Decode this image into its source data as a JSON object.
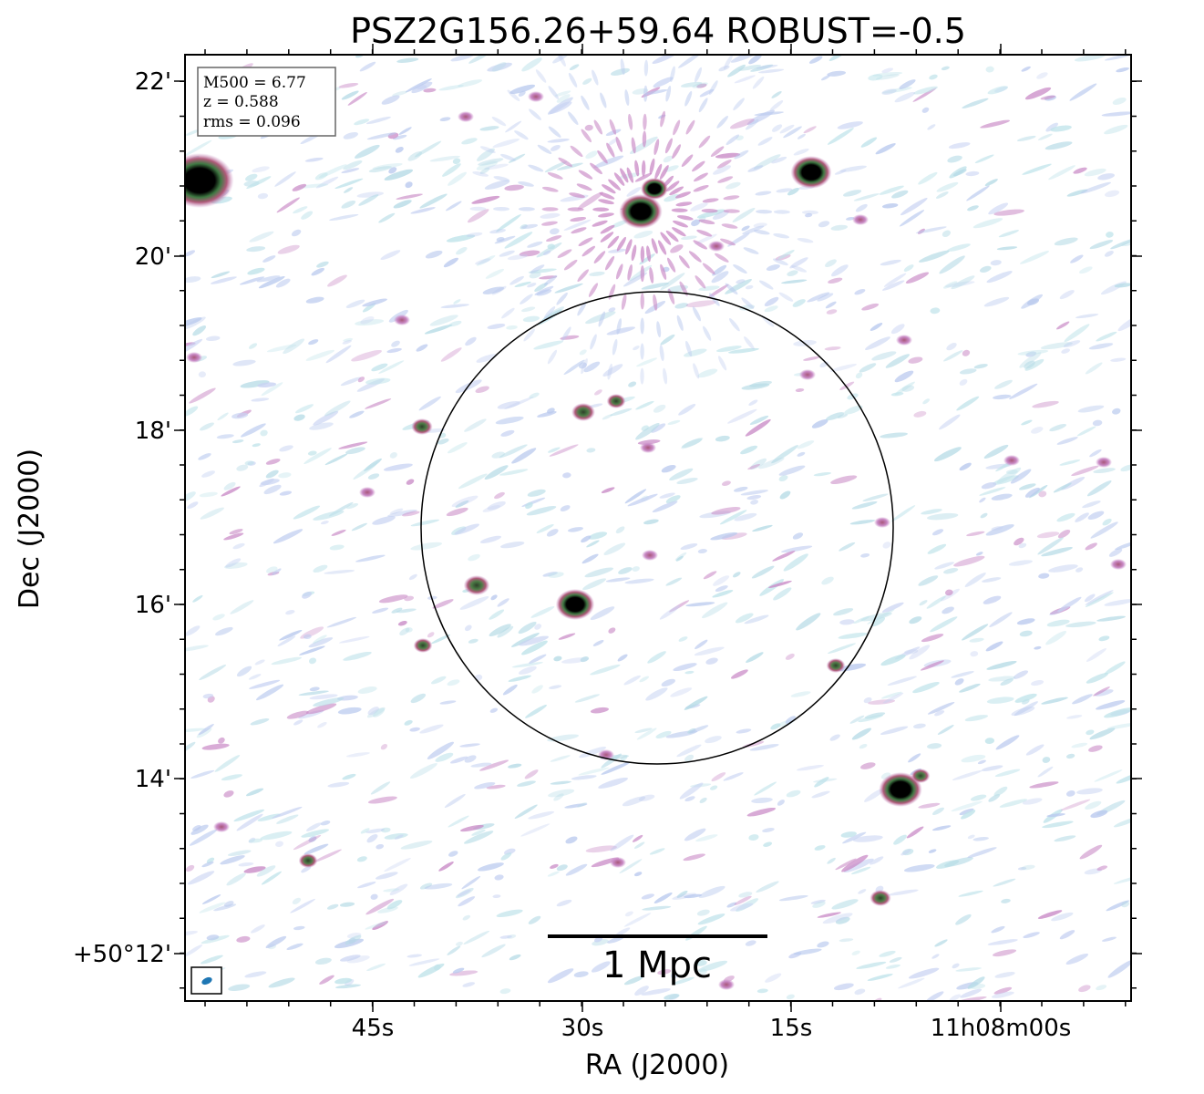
{
  "title": "PSZ2G156.26+59.64 ROBUST=-0.5",
  "info_box": {
    "m500": "M500 = 6.77",
    "z": "z = 0.588",
    "rms": "rms = 0.096"
  },
  "scale_bar": {
    "label": "1 Mpc"
  },
  "axes": {
    "xlabel": "RA (J2000)",
    "ylabel": "Dec (J2000)",
    "x_ticks": [
      "45s",
      "30s",
      "15s",
      "11h08m00s"
    ],
    "y_ticks": [
      "22'",
      "20'",
      "18'",
      "16'",
      "14'",
      "+50°12'"
    ]
  },
  "colors": {
    "background": "#ffffff",
    "noise_light": "#b9c9ee",
    "noise_cyan": "#bfe3ea",
    "noise_magenta": "#c98ac6",
    "source_outer": "#b05a7a",
    "source_ring": "#3f7a43",
    "source_core": "#000000",
    "beam": "#1f77b4"
  }
}
